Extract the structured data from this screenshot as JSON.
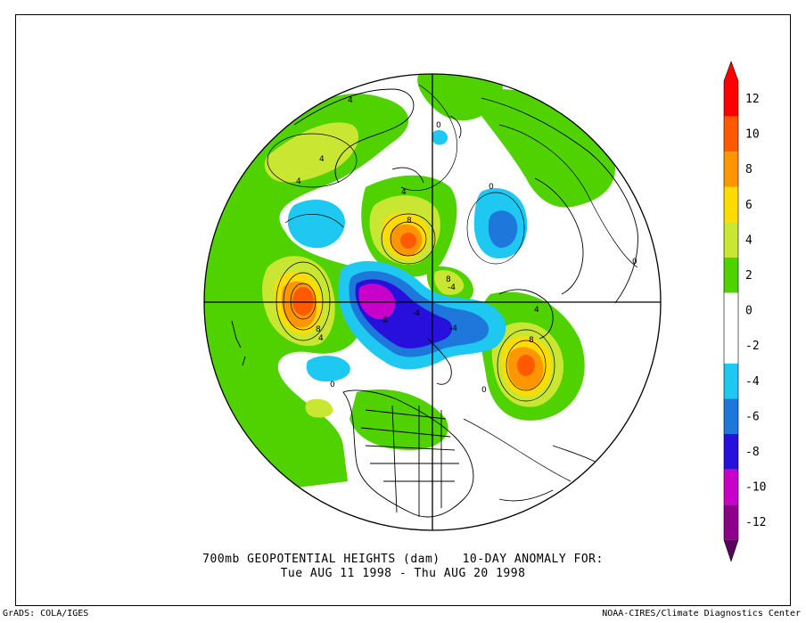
{
  "title": {
    "line1": "700mb GEOPOTENTIAL HEIGHTS (dam)   10-DAY ANOMALY FOR:",
    "line2": "Tue AUG 11 1998 - Thu AUG 20 1998"
  },
  "credits": {
    "left": "GrADS: COLA/IGES",
    "right": "NOAA-CIRES/Climate Diagnostics Center"
  },
  "legend": {
    "levels": [
      {
        "label": "12",
        "color": "#ff0000"
      },
      {
        "label": "10",
        "color": "#ff5a00"
      },
      {
        "label": "8",
        "color": "#ff9600"
      },
      {
        "label": "6",
        "color": "#ffdc00"
      },
      {
        "label": "4",
        "color": "#c8e632"
      },
      {
        "label": "2",
        "color": "#50d200"
      },
      {
        "label": "0",
        "color": "#ffffff"
      },
      {
        "label": "-2",
        "color": "#ffffff"
      },
      {
        "label": "-4",
        "color": "#1ec8f0"
      },
      {
        "label": "-6",
        "color": "#1e78dc"
      },
      {
        "label": "-8",
        "color": "#2810dc"
      },
      {
        "label": "-10",
        "color": "#c800c8"
      },
      {
        "label": "-12",
        "color": "#8c008c"
      }
    ],
    "top_color": "#ff0000",
    "bottom_color": "#5a005a"
  },
  "contour_labels": [
    "4",
    "4",
    "4",
    "8",
    "0",
    "0",
    "0",
    "4",
    "8",
    "8",
    "4",
    "-8",
    "-4",
    "-4",
    "4",
    "8",
    "0",
    "0",
    "-4"
  ]
}
